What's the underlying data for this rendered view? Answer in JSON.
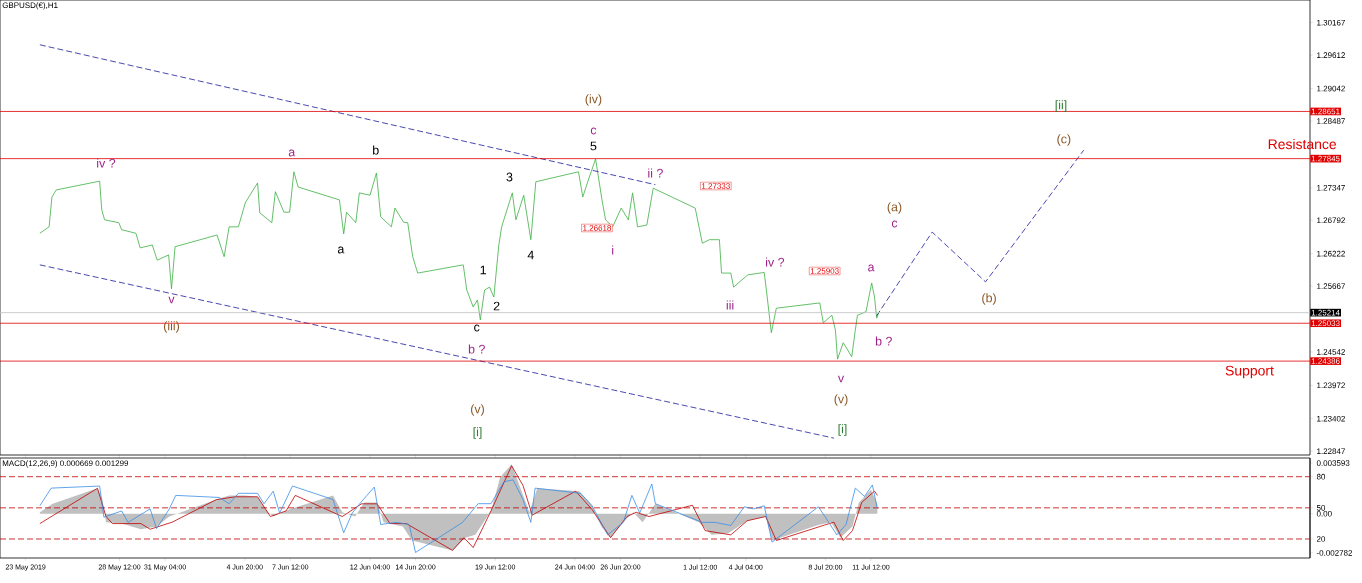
{
  "chart_data": [
    {
      "type": "line",
      "title": "GBPUSD(€),H1",
      "xlim": [
        "2019-05-21T12:00",
        "2019-08-06T05:00"
      ],
      "ylim": [
        1.22782,
        1.30555
      ],
      "tick_labels": "y",
      "xticks": [
        {
          "value": "2019-05-23T00:00",
          "label": null
        },
        {
          "value": "2019-05-28T12:00",
          "label": null
        },
        {
          "value": "2019-05-31T04:00",
          "label": null
        },
        {
          "value": "2019-06-04T20:00",
          "label": null
        },
        {
          "value": "2019-06-07T12:00",
          "label": null
        },
        {
          "value": "2019-06-12T04:00",
          "label": null
        },
        {
          "value": "2019-06-14T20:00",
          "label": null
        },
        {
          "value": "2019-06-19T12:00",
          "label": null
        },
        {
          "value": "2019-06-24T04:00",
          "label": null
        },
        {
          "value": "2019-06-26T20:00",
          "label": null
        },
        {
          "value": "2019-07-01T12:00",
          "label": null
        },
        {
          "value": "2019-07-04T04:00",
          "label": null
        },
        {
          "value": "2019-07-08T20:00",
          "label": null
        },
        {
          "value": "2019-07-11T12:00",
          "label": null
        }
      ],
      "yticks": [
        1.30167,
        1.29612,
        1.29042,
        1.28487,
        1.27347,
        1.26792,
        1.26222,
        1.25667,
        1.24542,
        1.23972,
        1.23402,
        1.22847
      ],
      "series": [
        {
          "color": "#3cb043",
          "x": [
            "2019-05-23T20:00",
            "2019-05-24T09:00",
            "2019-05-24T13:00",
            "2019-05-24T19:00",
            "2019-05-27T08:00",
            "2019-05-27T11:00",
            "2019-05-27T15:00",
            "2019-05-28T11:00",
            "2019-05-28T15:00",
            "2019-05-29T11:00",
            "2019-05-29T17:00",
            "2019-05-30T10:00",
            "2019-05-30T17:00",
            "2019-05-31T09:00",
            "2019-05-31T13:00",
            "2019-05-31T18:00",
            "2019-06-03T05:00",
            "2019-06-03T15:00",
            "2019-06-03T22:00",
            "2019-06-04T11:00",
            "2019-06-04T21:00",
            "2019-06-05T14:00",
            "2019-06-05T17:00",
            "2019-06-06T10:00",
            "2019-06-06T15:00",
            "2019-06-07T03:00",
            "2019-06-07T11:00",
            "2019-06-07T17:00",
            "2019-06-07T23:00",
            "2019-06-10T09:00",
            "2019-06-10T15:00",
            "2019-06-10T19:00",
            "2019-06-11T08:00",
            "2019-06-11T13:00",
            "2019-06-12T04:00",
            "2019-06-12T13:00",
            "2019-06-12T19:00",
            "2019-06-13T10:00",
            "2019-06-13T15:00",
            "2019-06-14T03:00",
            "2019-06-14T09:00",
            "2019-06-14T16:00",
            "2019-06-14T23:00",
            "2019-06-17T15:00",
            "2019-06-17T20:00",
            "2019-06-18T05:00",
            "2019-06-18T11:00",
            "2019-06-18T15:00",
            "2019-06-18T21:00",
            "2019-06-19T04:00",
            "2019-06-19T10:00",
            "2019-06-19T17:00",
            "2019-06-19T21:00",
            "2019-06-20T12:00",
            "2019-06-20T17:00",
            "2019-06-21T04:00",
            "2019-06-21T14:00",
            "2019-06-21T21:00",
            "2019-06-24T09:00",
            "2019-06-24T15:00",
            "2019-06-24T22:00",
            "2019-06-25T09:00",
            "2019-06-25T18:00",
            "2019-06-25T23:00",
            "2019-06-26T09:00",
            "2019-06-26T21:00",
            "2019-06-27T07:00",
            "2019-06-27T13:00",
            "2019-06-27T20:00",
            "2019-06-28T09:00",
            "2019-06-28T18:00",
            "2019-07-01T05:00",
            "2019-07-01T15:00",
            "2019-07-02T01:00",
            "2019-07-02T15:00",
            "2019-07-02T18:00",
            "2019-07-03T07:00",
            "2019-07-03T11:00",
            "2019-07-04T07:00",
            "2019-07-05T06:00",
            "2019-07-05T09:00",
            "2019-07-05T16:00",
            "2019-07-05T23:00",
            "2019-07-08T12:00",
            "2019-07-08T17:00",
            "2019-07-09T05:00",
            "2019-07-09T10:00",
            "2019-07-09T13:00",
            "2019-07-09T21:00",
            "2019-07-10T09:00",
            "2019-07-10T14:00",
            "2019-07-10T17:00",
            "2019-07-11T05:00",
            "2019-07-11T13:00",
            "2019-07-11T17:00",
            "2019-07-11T20:00",
            "2019-07-11T23:00"
          ],
          "values": [
            1.2657,
            1.2668,
            1.2719,
            1.2731,
            1.2746,
            1.2697,
            1.268,
            1.2675,
            1.2663,
            1.2657,
            1.2632,
            1.2637,
            1.2611,
            1.262,
            1.2562,
            1.2634,
            1.2654,
            1.2617,
            1.2668,
            1.2668,
            1.271,
            1.2743,
            1.2692,
            1.2675,
            1.2728,
            1.2693,
            1.2693,
            1.2762,
            1.2736,
            1.2714,
            1.2656,
            1.2693,
            1.2675,
            1.2726,
            1.2722,
            1.276,
            1.2685,
            1.2668,
            1.27,
            1.2676,
            1.2675,
            1.2617,
            1.2589,
            1.2603,
            1.256,
            1.2531,
            1.2543,
            1.2509,
            1.256,
            1.2565,
            1.2548,
            1.2637,
            1.2668,
            1.2726,
            1.268,
            1.2722,
            1.2646,
            1.2745,
            1.2762,
            1.2719,
            1.2745,
            1.2784,
            1.2714,
            1.268,
            1.2668,
            1.27,
            1.268,
            1.2726,
            1.2668,
            1.2671,
            1.2734,
            1.27,
            1.264,
            1.2646,
            1.2646,
            1.2589,
            1.2589,
            1.2565,
            1.2586,
            1.259,
            1.256,
            1.2487,
            1.2529,
            1.2538,
            1.2504,
            1.2517,
            1.2492,
            1.2442,
            1.247,
            1.2446,
            1.2492,
            1.2517,
            1.2523,
            1.2572,
            1.2548,
            1.2512,
            1.2521
          ]
        },
        {
          "type": "line",
          "color": "#1a1a9c",
          "line_style": "dashed",
          "x": [
            "2019-05-23T20:00",
            "2019-06-28T21:00"
          ],
          "values": [
            1.2979,
            1.274
          ]
        },
        {
          "type": "line",
          "color": "#1a1a9c",
          "line_style": "dashed",
          "x": [
            "2019-05-23T20:00",
            "2019-07-09T08:00"
          ],
          "values": [
            1.2603,
            1.2307
          ]
        },
        {
          "type": "line",
          "color": "#1a1a9c",
          "line_style": "dashed",
          "x": [
            "2019-07-11T20:00",
            "2019-07-15T02:00",
            "2019-07-18T05:00",
            "2019-07-23T23:00"
          ],
          "values": [
            1.2516,
            1.2659,
            1.2574,
            1.2799
          ]
        }
      ],
      "ref_lines": [
        {
          "axis": "y",
          "value": 1.28651,
          "label": "1.28651",
          "color": "#e00000"
        },
        {
          "axis": "y",
          "value": 1.27845,
          "label": "1.27845",
          "color": "#e00000"
        },
        {
          "axis": "y",
          "value": 1.25214,
          "label": "1.25214",
          "color": "#c0c0c0"
        },
        {
          "axis": "y",
          "value": 1.25033,
          "label": "1.25033",
          "color": "#e00000"
        },
        {
          "axis": "y",
          "value": 1.24386,
          "label": "1.24386",
          "color": "#e00000"
        }
      ],
      "annotations": [
        "iv ?",
        "v",
        "(iii)",
        "a",
        "a",
        "b",
        "1",
        "2",
        "c",
        "b ?",
        "(v)",
        "[i]",
        "3",
        "4",
        "(iv)",
        "c",
        "5",
        "1.26618",
        "i",
        "ii ?",
        "1.27333",
        "iii",
        "iv ?",
        "1.25903",
        "v",
        "(v)",
        "[i]",
        "a",
        "b ?",
        "(a)",
        "c",
        "(b)",
        "[ii]",
        "(c)",
        "Resistance",
        "Support"
      ]
    },
    {
      "type": "line",
      "title": "MACD(12,26,9) 0.000669 0.001299",
      "xlim": [
        "2019-05-21T12:00",
        "2019-08-06T05:00"
      ],
      "ylim": [
        -0.00314,
        0.00395
      ],
      "y2lim": [
        1.7,
        98
      ],
      "xticks": [
        {
          "value": "2019-05-23T00:00",
          "label": "23 May 2019"
        },
        {
          "value": "2019-05-28T12:00",
          "label": "28 May 12:00"
        },
        {
          "value": "2019-05-31T04:00",
          "label": "31 May 04:00"
        },
        {
          "value": "2019-06-04T20:00",
          "label": "4 Jun 20:00"
        },
        {
          "value": "2019-06-07T12:00",
          "label": "7 Jun 12:00"
        },
        {
          "value": "2019-06-12T04:00",
          "label": "12 Jun 04:00"
        },
        {
          "value": "2019-06-14T20:00",
          "label": "14 Jun 20:00"
        },
        {
          "value": "2019-06-19T12:00",
          "label": "19 Jun 12:00"
        },
        {
          "value": "2019-06-24T04:00",
          "label": "24 Jun 04:00"
        },
        {
          "value": "2019-06-26T20:00",
          "label": "26 Jun 20:00"
        },
        {
          "value": "2019-07-01T12:00",
          "label": "1 Jul 12:00"
        },
        {
          "value": "2019-07-04T04:00",
          "label": "4 Jul 04:00"
        },
        {
          "value": "2019-07-08T20:00",
          "label": "8 Jul 20:00"
        },
        {
          "value": "2019-07-11T12:00",
          "label": "11 Jul 12:00"
        }
      ],
      "yticks": [
        0.003593,
        {
          "value": 0,
          "label": "0.00"
        },
        -0.002782
      ],
      "y2ticks": [
        80,
        50,
        20
      ],
      "series": [
        {
          "type": "area",
          "color": "#c0c0c0",
          "x": [
            "2019-05-23T20:00",
            "2019-05-24T14:00",
            "2019-05-27T05:00",
            "2019-05-27T12:00",
            "2019-05-27T17:00",
            "2019-05-28T15:00",
            "2019-05-29T18:00",
            "2019-05-30T16:00",
            "2019-05-31T10:00",
            "2019-06-03T04:00",
            "2019-06-03T22:00",
            "2019-06-04T20:00",
            "2019-06-05T14:00",
            "2019-06-06T03:00",
            "2019-06-06T12:00",
            "2019-06-07T10:00",
            "2019-06-10T00:00",
            "2019-06-10T13:00",
            "2019-06-11T07:00",
            "2019-06-11T20:00",
            "2019-06-12T14:00",
            "2019-06-12T23:00",
            "2019-06-14T02:00",
            "2019-06-14T15:00",
            "2019-06-17T00:00",
            "2019-06-17T18:00",
            "2019-06-18T08:00",
            "2019-06-19T06:00",
            "2019-06-19T19:00",
            "2019-06-20T11:00",
            "2019-06-20T22:00",
            "2019-06-21T12:00",
            "2019-06-21T23:00",
            "2019-06-24T10:00",
            "2019-06-25T04:00",
            "2019-06-25T17:00",
            "2019-06-26T06:00",
            "2019-06-27T00:00",
            "2019-06-27T14:00",
            "2019-06-28T03:00",
            "2019-06-28T21:00",
            "2019-07-01T10:00",
            "2019-07-02T04:00",
            "2019-07-03T03:00",
            "2019-07-04T06:00",
            "2019-07-05T08:00",
            "2019-07-05T17:00",
            "2019-07-08T10:00",
            "2019-07-09T04:00",
            "2019-07-09T17:00",
            "2019-07-10T10:00",
            "2019-07-10T19:00",
            "2019-07-11T12:00",
            "2019-07-11T21:00"
          ],
          "values": [
            0.0001,
            0.0007,
            0.0018,
            0.001,
            -0.0006,
            -0.0007,
            -0.0011,
            -0.0009,
            -0.0002,
            0.001,
            0.0013,
            0.0013,
            0.0012,
            0.0002,
            -0.0002,
            0.0003,
            0.0013,
            0.0001,
            -0.0002,
            0.0008,
            0.0008,
            -0.0006,
            -0.0009,
            -0.0019,
            -0.0026,
            -0.0017,
            -0.0015,
            0.0002,
            0.0026,
            0.0035,
            0.002,
            0.0001,
            0.0018,
            0.0016,
            0.0006,
            -0.0009,
            -0.0017,
            -0.0006,
            0.0001,
            -0.0006,
            0.0007,
            -0.0006,
            -0.0015,
            -0.0014,
            -0.0005,
            -0.0002,
            -0.0019,
            -0.0008,
            -0.0006,
            -0.0017,
            -0.0009,
            0.0008,
            0.0017,
            0.0007
          ]
        },
        {
          "type": "line",
          "color": "#c00000",
          "x": [
            "2019-05-23T20:00",
            "2019-05-27T05:00",
            "2019-05-27T17:00",
            "2019-05-28T02:00",
            "2019-05-29T18:00",
            "2019-05-30T07:00",
            "2019-05-31T14:00",
            "2019-06-03T04:00",
            "2019-06-04T07:00",
            "2019-06-05T14:00",
            "2019-06-06T08:00",
            "2019-06-07T06:00",
            "2019-06-07T19:00",
            "2019-06-10T13:00",
            "2019-06-11T16:00",
            "2019-06-12T14:00",
            "2019-06-13T08:00",
            "2019-06-14T07:00",
            "2019-06-17T00:00",
            "2019-06-17T16:00",
            "2019-06-18T05:00",
            "2019-06-19T06:00",
            "2019-06-20T11:00",
            "2019-06-21T03:00",
            "2019-06-21T16:00",
            "2019-06-24T05:00",
            "2019-06-25T04:00",
            "2019-06-26T06:00",
            "2019-06-27T05:00",
            "2019-06-27T18:00",
            "2019-06-28T12:00",
            "2019-07-01T01:00",
            "2019-07-01T19:00",
            "2019-07-03T07:00",
            "2019-07-04T06:00",
            "2019-07-05T08:00",
            "2019-07-05T23:00",
            "2019-07-08T19:00",
            "2019-07-09T08:00",
            "2019-07-09T21:00",
            "2019-07-10T10:00",
            "2019-07-10T23:00",
            "2019-07-11T17:00",
            "2019-07-11T21:00"
          ],
          "values": [
            -0.0007,
            0.0018,
            -0.0002,
            -0.0007,
            -0.0007,
            -0.0011,
            -0.0006,
            0.001,
            0.0012,
            0.0012,
            -0.0002,
            0.0002,
            0.0013,
            -0.0002,
            0.0007,
            0.0007,
            -0.0007,
            -0.0007,
            -0.0026,
            -0.0017,
            -0.0024,
            0.0002,
            0.0034,
            0.002,
            -0.0001,
            0.0016,
            0.0003,
            -0.0017,
            -0.0002,
            0.0001,
            -0.0002,
            0.0006,
            -0.0012,
            -0.0015,
            -0.0005,
            -0.0002,
            -0.0019,
            -0.0008,
            -0.0006,
            -0.0019,
            -0.0012,
            0.0008,
            0.0016,
            0.0013
          ]
        },
        {
          "type": "line",
          "axis": "y2",
          "color": "#3a8ee6",
          "x": [
            "2019-05-23T20:00",
            "2019-05-24T12:00",
            "2019-05-27T08:00",
            "2019-05-27T14:00",
            "2019-05-28T15:00",
            "2019-05-29T00:00",
            "2019-05-30T07:00",
            "2019-05-30T16:00",
            "2019-05-31T10:00",
            "2019-05-31T19:00",
            "2019-06-03T08:00",
            "2019-06-03T22:00",
            "2019-06-04T11:00",
            "2019-06-05T14:00",
            "2019-06-05T23:00",
            "2019-06-06T12:00",
            "2019-06-06T21:00",
            "2019-06-07T15:00",
            "2019-06-10T00:00",
            "2019-06-10T15:00",
            "2019-06-11T03:00",
            "2019-06-11T16:00",
            "2019-06-12T10:00",
            "2019-06-12T19:00",
            "2019-06-13T17:00",
            "2019-06-14T11:00",
            "2019-06-14T20:00",
            "2019-06-17T14:00",
            "2019-06-18T12:00",
            "2019-06-19T06:00",
            "2019-06-20T00:00",
            "2019-06-20T13:00",
            "2019-06-21T03:00",
            "2019-06-21T14:00",
            "2019-06-21T20:00",
            "2019-06-24T12:00",
            "2019-06-25T04:00",
            "2019-06-26T02:00",
            "2019-06-27T00:00",
            "2019-06-27T12:00",
            "2019-06-27T23:00",
            "2019-06-28T16:00",
            "2019-06-28T21:00",
            "2019-07-01T15:00",
            "2019-07-02T09:00",
            "2019-07-03T07:00",
            "2019-07-04T02:00",
            "2019-07-04T15:00",
            "2019-07-05T06:00",
            "2019-07-05T17:00",
            "2019-07-08T10:00",
            "2019-07-08T19:00",
            "2019-07-09T12:00",
            "2019-07-10T01:00",
            "2019-07-10T14:00",
            "2019-07-11T03:00",
            "2019-07-11T14:00",
            "2019-07-11T21:00"
          ],
          "values": [
            52,
            69,
            71,
            41,
            47,
            36,
            49,
            30,
            49,
            62,
            60,
            54,
            64,
            64,
            54,
            66,
            45,
            71,
            58,
            26,
            45,
            56,
            70,
            34,
            36,
            34,
            7,
            36,
            54,
            54,
            75,
            77,
            58,
            36,
            69,
            64,
            52,
            24,
            36,
            62,
            45,
            73,
            54,
            36,
            36,
            33,
            51,
            49,
            52,
            17,
            51,
            42,
            24,
            34,
            69,
            61,
            72,
            49
          ]
        }
      ],
      "ref_lines": [
        {
          "axis": "y2",
          "value": 80,
          "color": "#c00000",
          "line_style": "dashed"
        },
        {
          "axis": "y2",
          "value": 50,
          "color": "#c00000",
          "line_style": "dashed"
        },
        {
          "axis": "y2",
          "value": 20,
          "color": "#c00000",
          "line_style": "dashed"
        }
      ]
    }
  ]
}
